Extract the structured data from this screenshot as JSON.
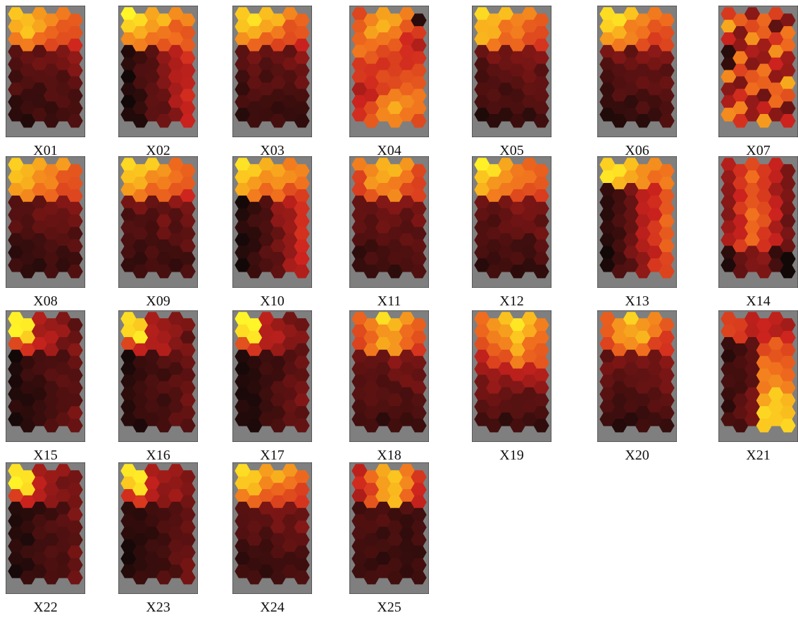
{
  "chart_data": {
    "type": "heatmap",
    "description_type": "SOM component planes (hexagonal grid)",
    "grid": {
      "cols": 6,
      "rows": 9
    },
    "colormap": "hot",
    "background_color": "#7f7f7f",
    "panels": [
      {
        "label": "X01",
        "pattern": "top"
      },
      {
        "label": "X02",
        "pattern": "top_right"
      },
      {
        "label": "X03",
        "pattern": "top"
      },
      {
        "label": "X04",
        "pattern": "center_warm"
      },
      {
        "label": "X05",
        "pattern": "top"
      },
      {
        "label": "X06",
        "pattern": "top"
      },
      {
        "label": "X07",
        "pattern": "mixed_bright"
      },
      {
        "label": "X08",
        "pattern": "top"
      },
      {
        "label": "X09",
        "pattern": "top"
      },
      {
        "label": "X10",
        "pattern": "top_right"
      },
      {
        "label": "X11",
        "pattern": "top_mid"
      },
      {
        "label": "X12",
        "pattern": "top"
      },
      {
        "label": "X13",
        "pattern": "top_right_grad"
      },
      {
        "label": "X14",
        "pattern": "orange_center"
      },
      {
        "label": "X15",
        "pattern": "topleft_corner"
      },
      {
        "label": "X16",
        "pattern": "topleft_corner"
      },
      {
        "label": "X17",
        "pattern": "topleft_corner"
      },
      {
        "label": "X18",
        "pattern": "top_mid"
      },
      {
        "label": "X19",
        "pattern": "top_broad"
      },
      {
        "label": "X20",
        "pattern": "top_mid"
      },
      {
        "label": "X21",
        "pattern": "right_band"
      },
      {
        "label": "X22",
        "pattern": "topleft_corner"
      },
      {
        "label": "X23",
        "pattern": "topleft_corner"
      },
      {
        "label": "X24",
        "pattern": "top"
      },
      {
        "label": "X25",
        "pattern": "top_center"
      }
    ]
  }
}
